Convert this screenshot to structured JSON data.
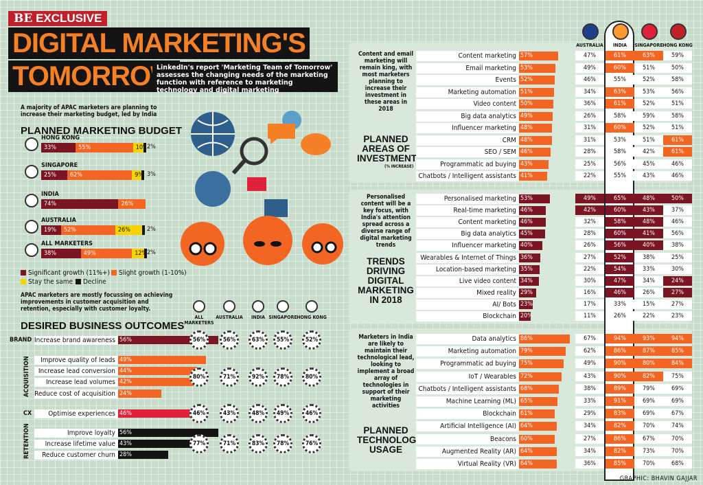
{
  "header": {
    "tag_be": "BE",
    "tag_text": "EXCLUSIVE",
    "title_line1": "DIGITAL MARKETING'S",
    "title_line2": "TOMORROW",
    "subtitle": "LinkedIn's report 'Marketing Team of Tomorrow' assesses the changing needs of the marketing function with reference to marketing technology and digital marketing"
  },
  "budget": {
    "intro": "A majority of APAC marketers are planning to increase their marketing budget, led by India",
    "heading": "PLANNED MARKETING BUDGET",
    "legend": [
      "Significant growth (11%+)",
      "Slight growth (1-10%)",
      "Stay the same",
      "Decline"
    ],
    "colors": [
      "#7b1423",
      "#f26522",
      "#f5d400",
      "#141414"
    ],
    "chart_data": {
      "type": "bar",
      "stacked": true,
      "categories": [
        "HONG KONG",
        "SINGAPORE",
        "INDIA",
        "AUSTRALIA",
        "ALL MARKETERS"
      ],
      "series": [
        {
          "name": "Significant growth (11%+)",
          "values": [
            33,
            25,
            74,
            19,
            38
          ],
          "labels": [
            "33%",
            "25%",
            "74%",
            "19%",
            "38%"
          ]
        },
        {
          "name": "Slight growth (1-10%)",
          "values": [
            55,
            62,
            26,
            52,
            49
          ],
          "labels": [
            "55%",
            "62%",
            "26%",
            "52%",
            "49%"
          ]
        },
        {
          "name": "Stay the same",
          "values": [
            10,
            9,
            0,
            26,
            12
          ],
          "labels": [
            "10%",
            "9%",
            "",
            "26%",
            "12%"
          ]
        },
        {
          "name": "Decline",
          "values": [
            2,
            3,
            0,
            2,
            2
          ],
          "labels": [
            "2%",
            "3%",
            "",
            "2%",
            "2%"
          ]
        }
      ]
    }
  },
  "outcomes": {
    "intro": "APAC marketers are mostly focussing on achieving improvements in customer acquisition and retention, especially with customer loyalty.",
    "heading": "DESIRED BUSINESS OUTCOMES",
    "group_labels": [
      "BRAND",
      "ACQUISITION",
      "CX",
      "RETENTION"
    ],
    "col_heads": [
      "ALL MARKETERS",
      "AUSTRALIA",
      "INDIA",
      "SINGAPORE",
      "HONG KONG"
    ],
    "chart_data": {
      "type": "bar",
      "categories": [
        "Increase brand awareness",
        "Improve quality of leads",
        "Increase lead conversion",
        "Increase lead volumes",
        "Reduce cost of acquisition",
        "Optimise experiences",
        "Improve loyalty",
        "Increase lifetime value",
        "Reduce customer churn"
      ],
      "values": [
        56,
        49,
        44,
        42,
        24,
        46,
        56,
        43,
        28
      ],
      "labels": [
        "56%",
        "49%",
        "44%",
        "42%",
        "24%",
        "46%",
        "56%",
        "43%",
        "28%"
      ],
      "colors": [
        "#7b1423",
        "#f26522",
        "#f26522",
        "#f26522",
        "#f26522",
        "#e0213a",
        "#141414",
        "#141414",
        "#141414"
      ]
    },
    "group_rows": [
      [
        "56%",
        "56%",
        "63%",
        "55%",
        "52%"
      ],
      [
        "80%",
        "71%",
        "92%",
        "78%",
        "80%"
      ],
      [
        "46%",
        "43%",
        "48%",
        "49%",
        "46%"
      ],
      [
        "77%",
        "71%",
        "83%",
        "78%",
        "76%"
      ]
    ]
  },
  "country_heads": [
    "AUSTRALIA",
    "INDIA",
    "SINGAPORE",
    "HONG KONG"
  ],
  "investment": {
    "note": "Content and email marketing will remain king, with most marketers planning to increase their investment in these areas in 2018",
    "heading": [
      "PLANNED",
      "AREAS OF",
      "INVESTMENT"
    ],
    "unit": "(% INCREASE)",
    "chart_data": {
      "type": "bar",
      "categories": [
        "Content marketing",
        "Email marketing",
        "Events",
        "Marketing automation",
        "Video content",
        "Big data analytics",
        "Influencer marketing",
        "CRM",
        "SEO / SEM",
        "Programmatic ad buying",
        "Chatbots / Intelligent assistants"
      ],
      "values": [
        57,
        53,
        52,
        51,
        50,
        49,
        48,
        48,
        46,
        43,
        41
      ],
      "labels": [
        "57%",
        "53%",
        "52%",
        "51%",
        "50%",
        "49%",
        "48%",
        "48%",
        "46%",
        "43%",
        "41%"
      ]
    },
    "table": [
      [
        "47%",
        "61%",
        "63%",
        "59%"
      ],
      [
        "49%",
        "60%",
        "51%",
        "50%"
      ],
      [
        "46%",
        "55%",
        "52%",
        "58%"
      ],
      [
        "34%",
        "63%",
        "53%",
        "56%"
      ],
      [
        "36%",
        "61%",
        "52%",
        "51%"
      ],
      [
        "26%",
        "58%",
        "59%",
        "58%"
      ],
      [
        "31%",
        "60%",
        "52%",
        "51%"
      ],
      [
        "31%",
        "53%",
        "51%",
        "61%"
      ],
      [
        "28%",
        "58%",
        "42%",
        "61%"
      ],
      [
        "25%",
        "56%",
        "45%",
        "46%"
      ],
      [
        "22%",
        "55%",
        "43%",
        "46%"
      ]
    ],
    "hl": [
      [
        0,
        1,
        1,
        0
      ],
      [
        0,
        1,
        0,
        0
      ],
      [
        0,
        0,
        0,
        0
      ],
      [
        0,
        1,
        0,
        0
      ],
      [
        0,
        1,
        0,
        0
      ],
      [
        0,
        0,
        0,
        0
      ],
      [
        0,
        1,
        0,
        0
      ],
      [
        0,
        0,
        0,
        1
      ],
      [
        0,
        0,
        0,
        1
      ],
      [
        0,
        0,
        0,
        0
      ],
      [
        0,
        0,
        0,
        0
      ]
    ]
  },
  "trends": {
    "note": "Personalised content will be a key focus, with India's attention spread across a diverse range of digital marketing trends",
    "heading": [
      "TRENDS",
      "DRIVING",
      "DIGITAL",
      "MARKETING",
      "IN 2018"
    ],
    "chart_data": {
      "type": "bar",
      "categories": [
        "Personalised marketing",
        "Real-time marketing",
        "Content marketing",
        "Big data analytics",
        "Influencer marketing",
        "Wearables & Internet of Things",
        "Location-based marketing",
        "Live video content",
        "Mixed reality",
        "AI/ Bots",
        "Blockchain"
      ],
      "values": [
        53,
        46,
        46,
        45,
        40,
        36,
        35,
        34,
        29,
        23,
        20
      ],
      "labels": [
        "53%",
        "46%",
        "46%",
        "45%",
        "40%",
        "36%",
        "35%",
        "34%",
        "29%",
        "23%",
        "20%"
      ]
    },
    "table": [
      [
        "49%",
        "65%",
        "48%",
        "50%"
      ],
      [
        "42%",
        "60%",
        "43%",
        "37%"
      ],
      [
        "32%",
        "58%",
        "48%",
        "46%"
      ],
      [
        "28%",
        "60%",
        "41%",
        "56%"
      ],
      [
        "26%",
        "56%",
        "40%",
        "38%"
      ],
      [
        "27%",
        "52%",
        "38%",
        "25%"
      ],
      [
        "22%",
        "54%",
        "33%",
        "30%"
      ],
      [
        "30%",
        "47%",
        "34%",
        "24%"
      ],
      [
        "16%",
        "46%",
        "26%",
        "27%"
      ],
      [
        "17%",
        "33%",
        "15%",
        "27%"
      ],
      [
        "11%",
        "26%",
        "22%",
        "23%"
      ]
    ],
    "hl": [
      [
        1,
        1,
        1,
        1
      ],
      [
        1,
        1,
        1,
        0
      ],
      [
        0,
        1,
        1,
        0
      ],
      [
        0,
        1,
        1,
        0
      ],
      [
        0,
        1,
        1,
        0
      ],
      [
        0,
        1,
        0,
        0
      ],
      [
        0,
        1,
        0,
        0
      ],
      [
        0,
        1,
        0,
        1
      ],
      [
        0,
        1,
        0,
        1
      ],
      [
        0,
        0,
        0,
        0
      ],
      [
        0,
        0,
        0,
        0
      ]
    ]
  },
  "technology": {
    "note": "Marketers in India are likely to maintain their technological lead, looking to implement a broad array of technologies in support of their marketing activities",
    "heading": [
      "PLANNED",
      "TECHNOLOGY",
      "USAGE"
    ],
    "chart_data": {
      "type": "bar",
      "categories": [
        "Data analytics",
        "Marketing automation",
        "Programmatic ad buying",
        "IoT / Wearables",
        "Chatbots / Intelligent assistants",
        "Machine Learning (ML)",
        "Blockchain",
        "Artificial Intelligence (AI)",
        "Beacons",
        "Augmented Reality (AR)",
        "Virtual Reality (VR)"
      ],
      "values": [
        86,
        79,
        75,
        72,
        68,
        65,
        61,
        64,
        60,
        64,
        64
      ],
      "labels": [
        "86%",
        "79%",
        "75%",
        "72%",
        "68%",
        "65%",
        "61%",
        "64%",
        "60%",
        "64%",
        "64%"
      ]
    },
    "table": [
      [
        "67%",
        "94%",
        "93%",
        "94%"
      ],
      [
        "62%",
        "86%",
        "87%",
        "85%"
      ],
      [
        "49%",
        "90%",
        "80%",
        "84%"
      ],
      [
        "43%",
        "90%",
        "82%",
        "75%"
      ],
      [
        "38%",
        "89%",
        "79%",
        "69%"
      ],
      [
        "33%",
        "91%",
        "69%",
        "69%"
      ],
      [
        "29%",
        "83%",
        "69%",
        "67%"
      ],
      [
        "34%",
        "82%",
        "70%",
        "74%"
      ],
      [
        "27%",
        "86%",
        "67%",
        "70%"
      ],
      [
        "34%",
        "82%",
        "73%",
        "70%"
      ],
      [
        "36%",
        "85%",
        "70%",
        "68%"
      ]
    ],
    "hl": [
      [
        0,
        1,
        1,
        1
      ],
      [
        0,
        1,
        1,
        1
      ],
      [
        0,
        1,
        1,
        1
      ],
      [
        0,
        1,
        1,
        0
      ],
      [
        0,
        1,
        0,
        0
      ],
      [
        0,
        1,
        0,
        0
      ],
      [
        0,
        1,
        0,
        0
      ],
      [
        0,
        1,
        0,
        0
      ],
      [
        0,
        1,
        0,
        0
      ],
      [
        0,
        1,
        0,
        0
      ],
      [
        0,
        1,
        0,
        0
      ]
    ]
  },
  "credit": "GRAPHIC: BHAVIN GAJJAR"
}
